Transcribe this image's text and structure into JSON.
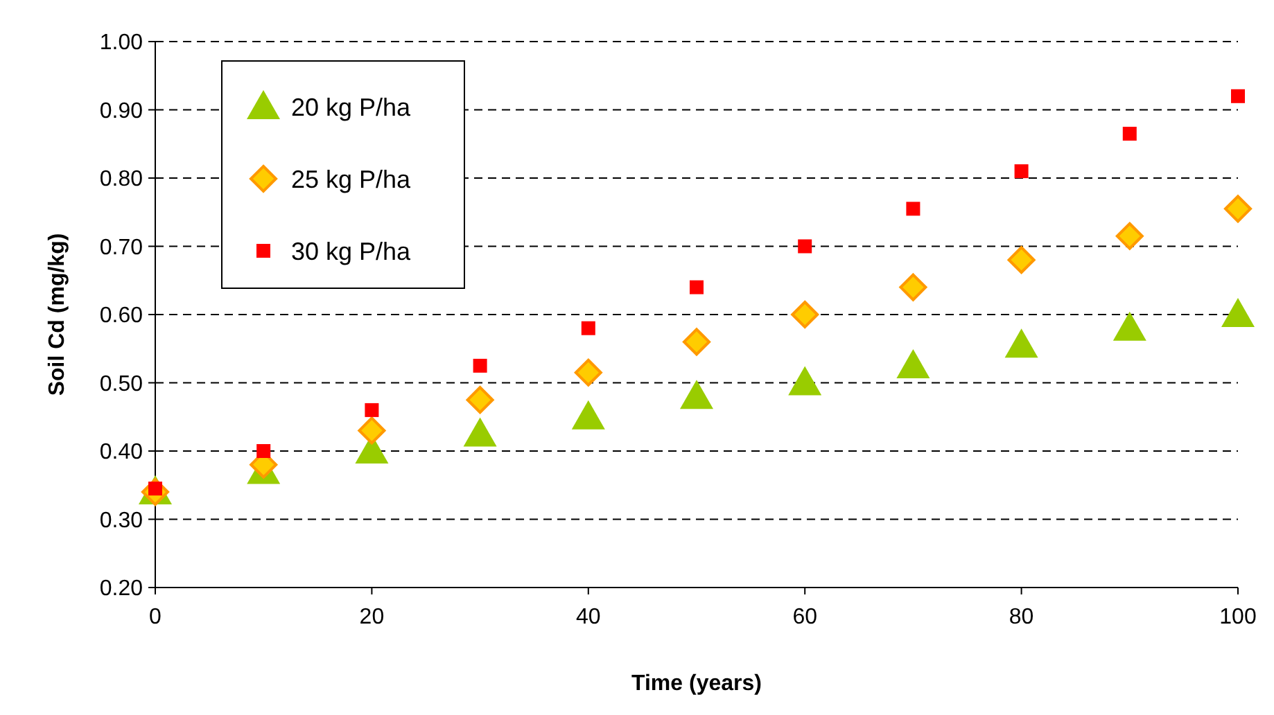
{
  "chart_data": {
    "type": "scatter",
    "xlabel": "Time (years)",
    "ylabel": "Soil Cd (mg/kg)",
    "x": [
      0,
      10,
      20,
      30,
      40,
      50,
      60,
      70,
      80,
      90,
      100
    ],
    "series": [
      {
        "name": "20 kg P/ha",
        "color": "#99cc00",
        "marker": "triangle",
        "values": [
          0.34,
          0.37,
          0.4,
          0.425,
          0.45,
          0.48,
          0.5,
          0.525,
          0.555,
          0.58,
          0.6
        ]
      },
      {
        "name": "25 kg P/ha",
        "color": "#ff9900",
        "marker": "diamond",
        "values": [
          0.34,
          0.38,
          0.43,
          0.475,
          0.515,
          0.56,
          0.6,
          0.64,
          0.68,
          0.715,
          0.755
        ]
      },
      {
        "name": "30 kg P/ha",
        "color": "#ff0000",
        "marker": "square",
        "values": [
          0.345,
          0.4,
          0.46,
          0.525,
          0.58,
          0.64,
          0.7,
          0.755,
          0.81,
          0.865,
          0.92
        ]
      }
    ],
    "xlim": [
      0,
      100
    ],
    "xticks": [
      0,
      20,
      40,
      60,
      80,
      100
    ],
    "ylim": [
      0.2,
      1.0
    ],
    "yticks": [
      {
        "value": 0.2,
        "label": "0.20"
      },
      {
        "value": 0.3,
        "label": "0.30"
      },
      {
        "value": 0.4,
        "label": "0.40"
      },
      {
        "value": 0.5,
        "label": "0.50"
      },
      {
        "value": 0.6,
        "label": "0.60"
      },
      {
        "value": 0.7,
        "label": "0.70"
      },
      {
        "value": 0.8,
        "label": "0.80"
      },
      {
        "value": 0.9,
        "label": "0.90"
      },
      {
        "value": 1.0,
        "label": "1.00"
      }
    ],
    "grid": "y",
    "legend": "top left",
    "line_style": "dashed"
  }
}
